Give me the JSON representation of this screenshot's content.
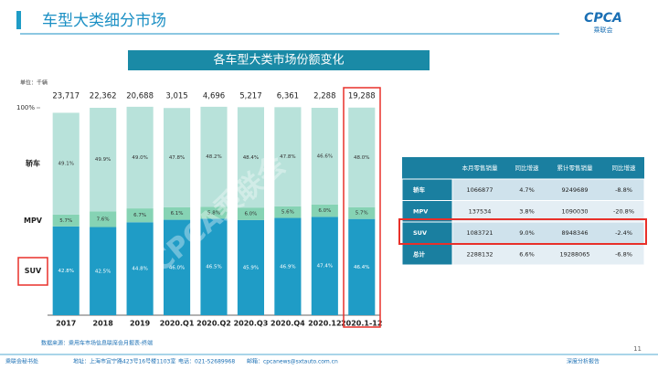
{
  "header": {
    "title": "车型大类细分市场",
    "logo": "CPCA",
    "logo_sub": "乘联会"
  },
  "chart_data": {
    "type": "stacked_bar",
    "title": "各车型大类市场份额变化",
    "unit": "单位：千辆",
    "source": "数据来源：乘用车市场信息联席会月报表-终端",
    "watermark": "CPCA乘联会",
    "categories": [
      "2017",
      "2018",
      "2019",
      "2020.Q1",
      "2020.Q2",
      "2020.Q3",
      "2020.Q4",
      "2020.12",
      "2020.1-12"
    ],
    "totals": {
      "values": [
        23717,
        22362,
        20688,
        3015,
        4696,
        5217,
        6361,
        2288,
        19288
      ],
      "value_labels": [
        "23,717",
        "22,362",
        "20,688",
        "3,015",
        "4,696",
        "5,217",
        "6,361",
        "2,288",
        "19,288"
      ]
    },
    "series": [
      {
        "name": "SUV",
        "color": "#1f9cc6",
        "values": [
          42.8,
          42.5,
          44.8,
          46.0,
          46.5,
          45.9,
          46.9,
          47.4,
          46.4
        ],
        "value_labels": [
          "42.8%",
          "42.5%",
          "44.8%",
          "46.0%",
          "46.5%",
          "45.9%",
          "46.9%",
          "47.4%",
          "46.4%"
        ]
      },
      {
        "name": "MPV",
        "color": "#86d3b4",
        "values": [
          5.7,
          7.6,
          6.7,
          6.1,
          5.8,
          6.0,
          5.6,
          6.0,
          5.7
        ],
        "value_labels": [
          "5.7%",
          "7.6%",
          "6.7%",
          "6.1%",
          "5.8%",
          "6.0%",
          "5.6%",
          "6.0%",
          "5.7%"
        ]
      },
      {
        "name": "轿车",
        "color": "#b8e2da",
        "values": [
          49.1,
          49.9,
          49.0,
          47.8,
          48.2,
          48.4,
          47.8,
          46.6,
          48.0
        ],
        "value_labels": [
          "49.1%",
          "49.9%",
          "49.0%",
          "47.8%",
          "48.2%",
          "48.4%",
          "47.8%",
          "46.6%",
          "48.0%"
        ]
      }
    ],
    "ylim": [
      0,
      100
    ],
    "yticks": [
      {
        "value": 100,
        "label": "100%"
      }
    ]
  },
  "table": {
    "header": [
      "本月零售销量",
      "同比增速",
      "累计零售销量",
      "同比增速"
    ],
    "rows": [
      [
        "轿车",
        "1066877",
        "4.7%",
        "9249689",
        "-8.8%"
      ],
      [
        "MPV",
        "137534",
        "3.8%",
        "1090030",
        "-20.8%"
      ],
      [
        "SUV",
        "1083721",
        "9.0%",
        "8948346",
        "-2.4%"
      ],
      [
        "总计",
        "2288132",
        "6.6%",
        "19288065",
        "-6.8%"
      ]
    ]
  },
  "footer": {
    "org": "乘联会秘书处",
    "address": "地址：上海市宜宁路423号16号楼1103室",
    "phone": "电话：021-52689968",
    "email": "邮箱：cpcanews@sxtauto.com.cn",
    "report": "深度分析报告",
    "page": "11"
  }
}
